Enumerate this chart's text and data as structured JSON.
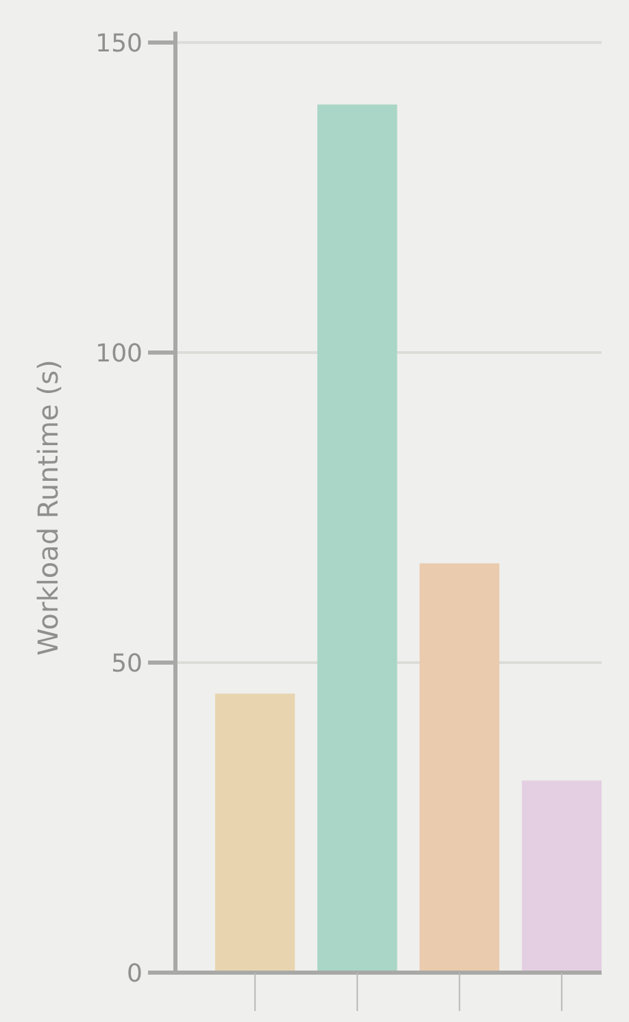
{
  "chart_data": {
    "type": "bar",
    "ylabel": "Workload Runtime (s)",
    "categories": [
      null,
      null,
      null,
      null
    ],
    "values": [
      45,
      140,
      66,
      31
    ],
    "colors": [
      "#e8d5b0",
      "#a9d6c6",
      "#ebcbad",
      "#e4cfe2"
    ],
    "ylim": [
      0,
      150
    ],
    "yticks": [
      0,
      50,
      100,
      150
    ],
    "grid": "y"
  }
}
